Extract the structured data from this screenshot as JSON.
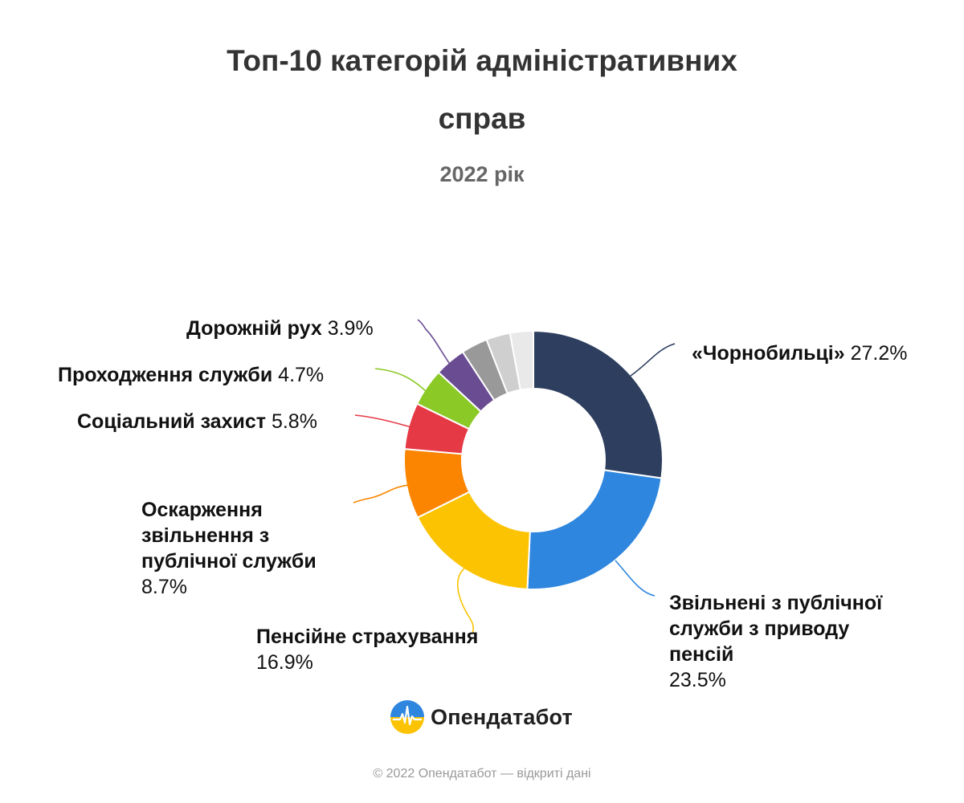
{
  "chart_data": {
    "type": "pie",
    "title_line1": "Топ-10 категорій адміністративних",
    "title_line2": "справ",
    "subtitle": "2022 рік",
    "labels": [
      "«Чорнобильці»",
      "Звільнені з публічної служби з приводу пенсій",
      "Пенсійне страхування",
      "Оскарження звільнення з публічної служби",
      "Соціальний захист",
      "Проходження служби",
      "Дорожній рух",
      "",
      "",
      ""
    ],
    "values": [
      27.2,
      23.5,
      16.9,
      8.7,
      5.8,
      4.7,
      3.9,
      3.3,
      3.0,
      2.9
    ],
    "value_labels": [
      "27.2%",
      "23.5%",
      "16.9%",
      "8.7%",
      "5.8%",
      "4.7%",
      "3.9%",
      "",
      "",
      ""
    ],
    "colors": [
      "#2d3e5e",
      "#2e86de",
      "#fbc302",
      "#fb8500",
      "#e63946",
      "#8ac926",
      "#6a4c93",
      "#999999",
      "#cfcfcf",
      "#e9e9e9"
    ],
    "hole": true
  },
  "logo": {
    "text": "Опендатабот",
    "icon": "opendatabot-logo-icon"
  },
  "footer": "© 2022 Опендатабот — відкриті дані"
}
